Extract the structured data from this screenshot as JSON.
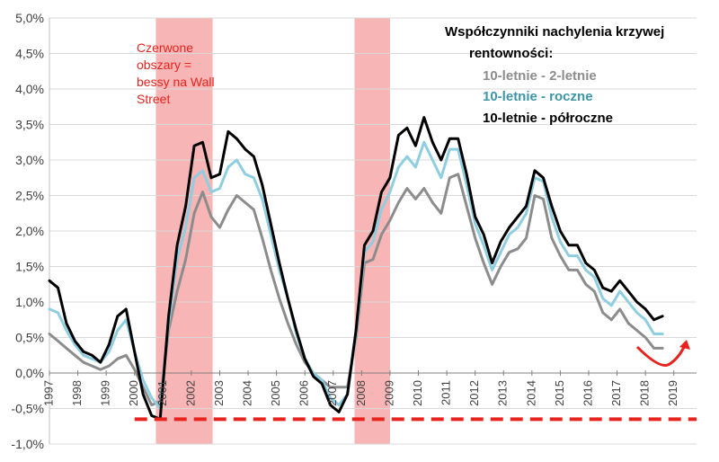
{
  "chart_data": {
    "type": "line",
    "title": "Współczynniki nachylenia krzywej rentowności:",
    "title_lines": [
      "Współczynniki nachylenia krzywej",
      "rentowności:"
    ],
    "xlabel": "",
    "ylabel": "",
    "ylim": [
      -1.0,
      5.0
    ],
    "xlim": [
      1997.0,
      2019.8
    ],
    "grid": "horizontal",
    "legend_position": "top-right",
    "y_ticks": [
      "-1,0%",
      "-0,5%",
      "0,0%",
      "0,5%",
      "1,0%",
      "1,5%",
      "2,0%",
      "2,5%",
      "3,0%",
      "3,5%",
      "4,0%",
      "4,5%",
      "5,0%"
    ],
    "y_tick_values": [
      -1.0,
      -0.5,
      0.0,
      0.5,
      1.0,
      1.5,
      2.0,
      2.5,
      3.0,
      3.5,
      4.0,
      4.5,
      5.0
    ],
    "x_ticks": [
      "1997",
      "1998",
      "1999",
      "2000",
      "2001",
      "2002",
      "2003",
      "2004",
      "2005",
      "2006",
      "2007",
      "2008",
      "2009",
      "2010",
      "2011",
      "2012",
      "2013",
      "2014",
      "2015",
      "2016",
      "2017",
      "2018",
      "2019"
    ],
    "x_tick_values": [
      1997,
      1998,
      1999,
      2000,
      2001,
      2002,
      2003,
      2004,
      2005,
      2006,
      2007,
      2008,
      2009,
      2010,
      2011,
      2012,
      2013,
      2014,
      2015,
      2016,
      2017,
      2018,
      2019
    ],
    "colors": {
      "gray": "#8c8c8c",
      "blue": "#8fcde0",
      "black": "#000000",
      "blue_label": "#3d95a8",
      "shade": "#f7a8a8",
      "annotation": "#e8231d"
    },
    "shaded_regions": [
      {
        "x_start": 2000.75,
        "x_end": 2002.75
      },
      {
        "x_start": 2007.75,
        "x_end": 2009.0
      }
    ],
    "shade_annotation_lines": [
      "Czerwone",
      "obszary =",
      "bessy na Wall",
      "Street"
    ],
    "reference_line": {
      "y": -0.65,
      "x_start": 2000.0,
      "x_end": 2019.8
    },
    "series": [
      {
        "name": "10-letnie - 2-letnie",
        "x": [
          1997.0,
          1997.3,
          1997.6,
          1997.9,
          1998.2,
          1998.5,
          1998.8,
          1999.1,
          1999.4,
          1999.7,
          2000.0,
          2000.3,
          2000.6,
          2000.9,
          2001.2,
          2001.5,
          2001.8,
          2002.1,
          2002.4,
          2002.7,
          2003.0,
          2003.3,
          2003.6,
          2003.9,
          2004.2,
          2004.5,
          2004.8,
          2005.1,
          2005.4,
          2005.7,
          2006.0,
          2006.3,
          2006.6,
          2006.9,
          2007.2,
          2007.5,
          2007.8,
          2008.1,
          2008.4,
          2008.7,
          2009.0,
          2009.3,
          2009.6,
          2009.9,
          2010.2,
          2010.5,
          2010.8,
          2011.1,
          2011.4,
          2011.7,
          2012.0,
          2012.3,
          2012.6,
          2012.9,
          2013.2,
          2013.5,
          2013.8,
          2014.1,
          2014.4,
          2014.7,
          2015.0,
          2015.3,
          2015.6,
          2015.9,
          2016.2,
          2016.5,
          2016.8,
          2017.1,
          2017.4,
          2017.7,
          2018.0,
          2018.3,
          2018.6
        ],
        "values": [
          0.55,
          0.45,
          0.35,
          0.25,
          0.15,
          0.1,
          0.05,
          0.1,
          0.2,
          0.25,
          0.05,
          -0.2,
          -0.45,
          -0.4,
          0.6,
          1.15,
          1.6,
          2.25,
          2.55,
          2.2,
          2.05,
          2.3,
          2.5,
          2.4,
          2.3,
          1.9,
          1.45,
          1.05,
          0.7,
          0.4,
          0.15,
          0.0,
          -0.1,
          -0.2,
          -0.2,
          -0.2,
          0.5,
          1.55,
          1.6,
          1.95,
          2.15,
          2.4,
          2.6,
          2.45,
          2.6,
          2.4,
          2.25,
          2.75,
          2.8,
          2.35,
          1.9,
          1.55,
          1.25,
          1.5,
          1.7,
          1.75,
          1.9,
          2.5,
          2.45,
          1.9,
          1.65,
          1.45,
          1.45,
          1.25,
          1.15,
          0.85,
          0.75,
          0.9,
          0.7,
          0.6,
          0.5,
          0.35,
          0.35
        ]
      },
      {
        "name": "10-letnie - roczne",
        "x": [
          1997.0,
          1997.3,
          1997.6,
          1997.9,
          1998.2,
          1998.5,
          1998.8,
          1999.1,
          1999.4,
          1999.7,
          2000.0,
          2000.3,
          2000.6,
          2000.9,
          2001.2,
          2001.5,
          2001.8,
          2002.1,
          2002.4,
          2002.7,
          2003.0,
          2003.3,
          2003.6,
          2003.9,
          2004.2,
          2004.5,
          2004.8,
          2005.1,
          2005.4,
          2005.7,
          2006.0,
          2006.3,
          2006.6,
          2006.9,
          2007.2,
          2007.5,
          2007.8,
          2008.1,
          2008.4,
          2008.7,
          2009.0,
          2009.3,
          2009.6,
          2009.9,
          2010.2,
          2010.5,
          2010.8,
          2011.1,
          2011.4,
          2011.7,
          2012.0,
          2012.3,
          2012.6,
          2012.9,
          2013.2,
          2013.5,
          2013.8,
          2014.1,
          2014.4,
          2014.7,
          2015.0,
          2015.3,
          2015.6,
          2015.9,
          2016.2,
          2016.5,
          2016.8,
          2017.1,
          2017.4,
          2017.7,
          2018.0,
          2018.3,
          2018.6
        ],
        "values": [
          0.9,
          0.85,
          0.6,
          0.4,
          0.25,
          0.2,
          0.15,
          0.3,
          0.6,
          0.75,
          0.3,
          -0.1,
          -0.35,
          -0.5,
          0.7,
          1.6,
          2.05,
          2.75,
          2.85,
          2.55,
          2.6,
          2.9,
          3.0,
          2.8,
          2.75,
          2.45,
          1.95,
          1.45,
          1.05,
          0.55,
          0.2,
          0.0,
          -0.1,
          -0.35,
          -0.45,
          -0.3,
          0.55,
          1.7,
          1.85,
          2.3,
          2.55,
          2.9,
          3.05,
          2.9,
          3.25,
          3.0,
          2.75,
          3.15,
          3.15,
          2.65,
          2.1,
          1.8,
          1.45,
          1.7,
          1.95,
          2.05,
          2.25,
          2.75,
          2.7,
          2.2,
          1.85,
          1.65,
          1.65,
          1.45,
          1.35,
          1.05,
          0.95,
          1.15,
          1.0,
          0.85,
          0.75,
          0.55,
          0.55
        ]
      },
      {
        "name": "10-letnie - półroczne",
        "x": [
          1997.0,
          1997.3,
          1997.6,
          1997.9,
          1998.2,
          1998.5,
          1998.8,
          1999.1,
          1999.4,
          1999.7,
          2000.0,
          2000.3,
          2000.6,
          2000.9,
          2001.2,
          2001.5,
          2001.8,
          2002.1,
          2002.4,
          2002.7,
          2003.0,
          2003.3,
          2003.6,
          2003.9,
          2004.2,
          2004.5,
          2004.8,
          2005.1,
          2005.4,
          2005.7,
          2006.0,
          2006.3,
          2006.6,
          2006.9,
          2007.2,
          2007.5,
          2007.8,
          2008.1,
          2008.4,
          2008.7,
          2009.0,
          2009.3,
          2009.6,
          2009.9,
          2010.2,
          2010.5,
          2010.8,
          2011.1,
          2011.4,
          2011.7,
          2012.0,
          2012.3,
          2012.6,
          2012.9,
          2013.2,
          2013.5,
          2013.8,
          2014.1,
          2014.4,
          2014.7,
          2015.0,
          2015.3,
          2015.6,
          2015.9,
          2016.2,
          2016.5,
          2016.8,
          2017.1,
          2017.4,
          2017.7,
          2018.0,
          2018.3,
          2018.6
        ],
        "values": [
          1.3,
          1.2,
          0.7,
          0.45,
          0.3,
          0.25,
          0.15,
          0.4,
          0.8,
          0.9,
          0.3,
          -0.3,
          -0.6,
          -0.65,
          0.8,
          1.8,
          2.35,
          3.2,
          3.25,
          2.75,
          2.8,
          3.4,
          3.3,
          3.15,
          3.05,
          2.65,
          2.1,
          1.55,
          1.05,
          0.6,
          0.2,
          -0.05,
          -0.15,
          -0.45,
          -0.55,
          -0.3,
          0.6,
          1.8,
          2.0,
          2.55,
          2.75,
          3.35,
          3.45,
          3.2,
          3.6,
          3.25,
          3.0,
          3.3,
          3.3,
          2.8,
          2.2,
          1.95,
          1.55,
          1.85,
          2.05,
          2.2,
          2.35,
          2.85,
          2.75,
          2.35,
          2.0,
          1.8,
          1.8,
          1.55,
          1.45,
          1.2,
          1.15,
          1.3,
          1.15,
          1.0,
          0.9,
          0.75,
          0.8
        ]
      }
    ]
  }
}
